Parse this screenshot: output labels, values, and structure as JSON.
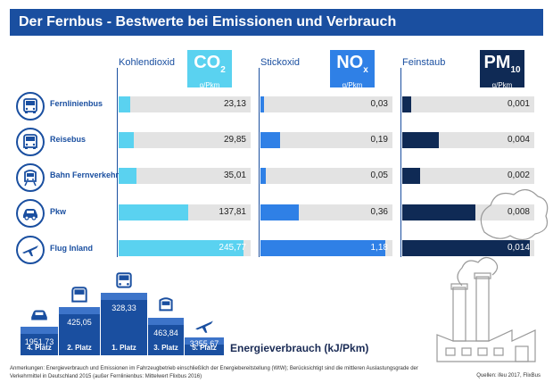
{
  "title": "Der Fernbus - Bestwerte bei Emissionen und Verbrauch",
  "columns": [
    {
      "label": "Kohlendioxid",
      "symbol": "CO",
      "subscript": "2",
      "unit": "g/Pkm",
      "box_color": "#5ad2f0",
      "bar_color": "#5ad2f0",
      "max": 260
    },
    {
      "label": "Stickoxid",
      "symbol": "NO",
      "subscript": "x",
      "unit": "g/Pkm",
      "box_color": "#2f80e6",
      "bar_color": "#2f80e6",
      "max": 1.25
    },
    {
      "label": "Feinstaub",
      "symbol": "PM",
      "subscript": "10",
      "unit": "g/Pkm",
      "box_color": "#0f2a55",
      "bar_color": "#0f2a55",
      "max": 0.0145
    }
  ],
  "rows": [
    {
      "name": "Fernlinienbus",
      "icon": "bus-icon",
      "values": [
        23.13,
        0.03,
        0.001
      ],
      "labels": [
        "23,13",
        "0,03",
        "0,001"
      ]
    },
    {
      "name": "Reisebus",
      "icon": "coach-icon",
      "values": [
        29.85,
        0.19,
        0.004
      ],
      "labels": [
        "29,85",
        "0,19",
        "0,004"
      ]
    },
    {
      "name": "Bahn Fernverkehr",
      "icon": "train-icon",
      "values": [
        35.01,
        0.05,
        0.002
      ],
      "labels": [
        "35,01",
        "0,05",
        "0,002"
      ]
    },
    {
      "name": "Pkw",
      "icon": "car-icon",
      "values": [
        137.81,
        0.36,
        0.008
      ],
      "labels": [
        "137,81",
        "0,36",
        "0,008"
      ]
    },
    {
      "name": "Flug Inland",
      "icon": "plane-icon",
      "values": [
        245.77,
        1.18,
        0.014
      ],
      "labels": [
        "245,77",
        "1,18",
        "0,014"
      ]
    }
  ],
  "chart_data": {
    "type": "bar",
    "categories": [
      "Fernlinienbus",
      "Reisebus",
      "Bahn Fernverkehr",
      "Pkw",
      "Flug Inland"
    ],
    "series": [
      {
        "name": "Kohlendioxid",
        "values": [
          23.13,
          29.85,
          35.01,
          137.81,
          245.77
        ]
      },
      {
        "name": "Stickoxid",
        "values": [
          0.03,
          0.19,
          0.05,
          0.36,
          1.18
        ]
      },
      {
        "name": "Feinstaub",
        "values": [
          0.001,
          0.004,
          0.002,
          0.008,
          0.014
        ]
      }
    ],
    "energy_ranking": {
      "label": "Energieverbrauch (kJ/Pkm)",
      "entries": [
        {
          "rank": "1. Platz",
          "value": "328,33",
          "icon": "bus-icon"
        },
        {
          "rank": "2. Platz",
          "value": "425,05",
          "icon": "coach-icon"
        },
        {
          "rank": "3. Platz",
          "value": "463,84",
          "icon": "train-icon"
        },
        {
          "rank": "4. Platz",
          "value": "1951,73",
          "icon": "car-icon"
        },
        {
          "rank": "5. Platz",
          "value": "3355,67",
          "icon": "plane-icon"
        }
      ]
    }
  },
  "footnote": "Anmerkungen: Energieverbrauch und Emissionen im Fahrzeugbetrieb einschließlich der Energiebereitstellung (WtW); Berücksichtigt sind die mittleren Auslastungsgrade der Verkehrmittel in Deutschland 2015 (außer Fernlinienbus: Mittelwert Flixbus 2016)",
  "source": "Quellen: ifeu 2017, FlixBus"
}
